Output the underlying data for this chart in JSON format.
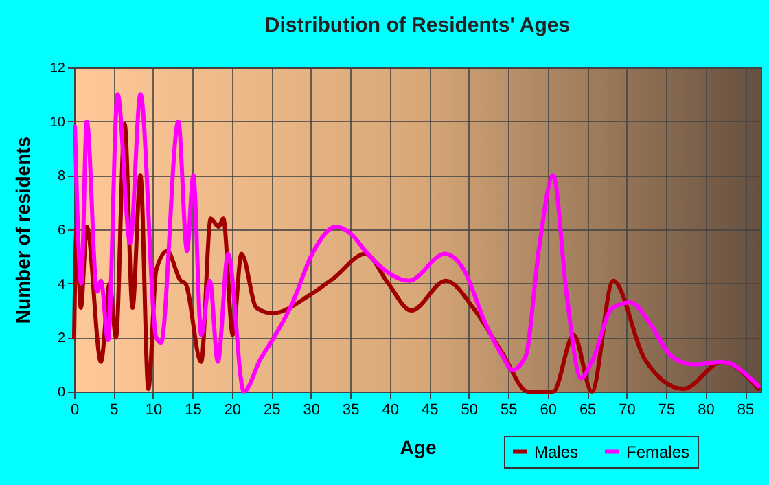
{
  "chart_data": {
    "type": "line",
    "title": "Distribution of Residents' Ages",
    "xlabel": "Age",
    "ylabel": "Number of residents",
    "xlim": [
      0,
      87
    ],
    "xticks": [
      0,
      5,
      10,
      15,
      20,
      25,
      30,
      35,
      40,
      45,
      50,
      55,
      60,
      65,
      70,
      75,
      80,
      85
    ],
    "ylim": [
      0,
      12
    ],
    "yticks": [
      0,
      2,
      4,
      6,
      8,
      10,
      12
    ],
    "grid": true,
    "legend": "bottom right",
    "series": [
      {
        "name": "Males",
        "color": "#a00000",
        "x": [
          0,
          0.3,
          0.85,
          1.6,
          3.4,
          4.5,
          5.3,
          6.4,
          7.4,
          8.4,
          9.4,
          10.4,
          11.8,
          13.5,
          14.1,
          16.1,
          17.3,
          18.3,
          18.9,
          20.1,
          21.2,
          23.1,
          25.1,
          30,
          32.9,
          36.9,
          39.8,
          42.7,
          47.1,
          50.8,
          54.3,
          57.5,
          60.7,
          63.3,
          65.6,
          68.3,
          72.3,
          77.2,
          82.1,
          86.7
        ],
        "values": [
          2,
          6,
          3.1,
          6.1,
          1.1,
          4,
          2,
          9.9,
          3.1,
          8,
          0.1,
          4.5,
          5.2,
          4.1,
          4,
          1.1,
          6.4,
          6.1,
          6.4,
          2.1,
          5.1,
          3.1,
          2.9,
          3.6,
          4.2,
          5.1,
          4,
          3,
          4.1,
          3,
          1.4,
          0,
          0,
          2.1,
          0,
          4.1,
          1.2,
          0.1,
          1.1,
          0.1
        ]
      },
      {
        "name": "Females",
        "color": "#ff00ff",
        "x": [
          0.1,
          0.9,
          1.6,
          2.9,
          3.4,
          4.3,
          5.5,
          7.1,
          8.4,
          10.4,
          11,
          13.2,
          14.3,
          15.1,
          16.1,
          17.2,
          18.2,
          19.5,
          21.5,
          23.6,
          25.1,
          27.7,
          30,
          33.2,
          35.2,
          36.9,
          39.8,
          42.4,
          47,
          49.4,
          52,
          54.3,
          55.5,
          57.2,
          58.9,
          60.7,
          62.4,
          64.2,
          65.6,
          68.2,
          70.5,
          72.8,
          75.7,
          78.6,
          82.1,
          86.7
        ],
        "values": [
          9.8,
          4,
          10,
          3.7,
          4.1,
          1.9,
          11,
          5.5,
          11,
          2,
          1.8,
          10,
          5.2,
          8,
          2.1,
          4.1,
          1.1,
          5.1,
          0,
          1.2,
          1.9,
          3.3,
          5,
          6.1,
          5.8,
          5.2,
          4.4,
          4.1,
          5.1,
          4.5,
          2.6,
          1.3,
          0.8,
          1.3,
          5.3,
          8,
          3.6,
          0.5,
          1.1,
          3.1,
          3.3,
          2.6,
          1.3,
          1,
          1.1,
          0.2
        ]
      }
    ]
  }
}
